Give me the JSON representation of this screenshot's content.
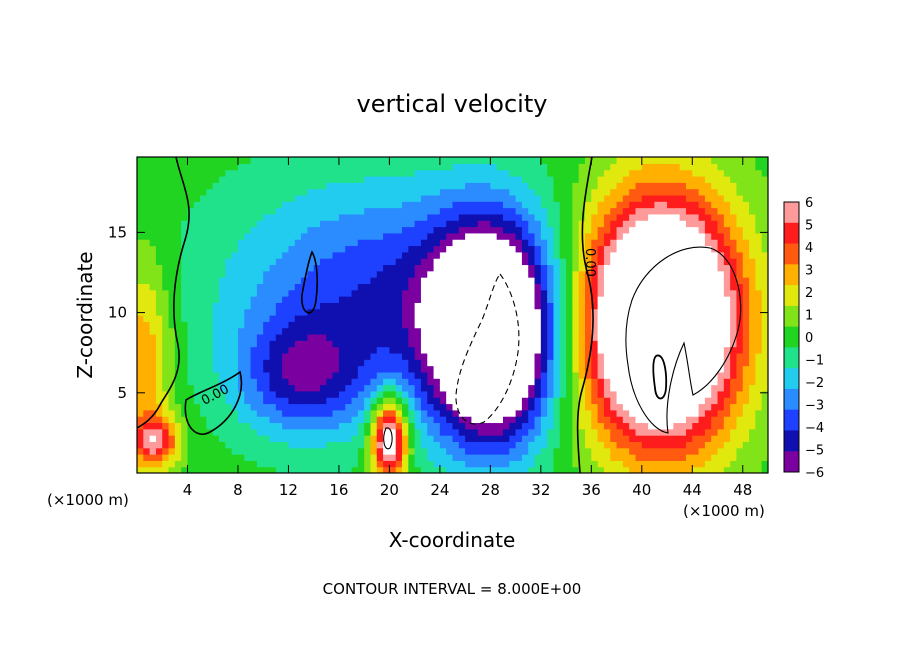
{
  "chart_data": {
    "type": "heatmap",
    "title": "vertical velocity",
    "xlabel": "X-coordinate",
    "ylabel": "Z-coordinate",
    "x_unit_left": "(×1000 m)",
    "x_unit_right": "(×1000 m)",
    "xlim": [
      0,
      50
    ],
    "ylim": [
      0,
      19.7
    ],
    "x_ticks": [
      4,
      8,
      12,
      16,
      20,
      24,
      28,
      32,
      36,
      40,
      44,
      48
    ],
    "y_ticks": [
      5,
      10,
      15
    ],
    "colorbar": {
      "ticks": [
        6,
        5,
        4,
        3,
        2,
        1,
        0,
        -1,
        -2,
        -3,
        -4,
        -5,
        -6
      ],
      "range": [
        -6,
        6
      ],
      "colors": [
        "#7a00a0",
        "#1010b0",
        "#1e40ff",
        "#2a8cff",
        "#22ccee",
        "#20e28a",
        "#22d422",
        "#80e418",
        "#e0e80e",
        "#ffb000",
        "#ff5a10",
        "#ff1c1c",
        "#ff9a9a"
      ]
    },
    "contour_interval_text": "CONTOUR INTERVAL = 8.000E+00",
    "contour_labels": [
      "0.00",
      "0.00"
    ],
    "features": [
      {
        "kind": "updraft",
        "x": 1.5,
        "z": 2.0,
        "sx": 1.3,
        "sz": 1.1,
        "w": 5.0
      },
      {
        "kind": "updraft",
        "x": 20.0,
        "z": 2.2,
        "sx": 1.0,
        "sz": 1.8,
        "w": 9.0
      },
      {
        "kind": "updraft",
        "x": 41.5,
        "z": 9.5,
        "sx": 4.2,
        "sz": 5.2,
        "w": 15.0
      },
      {
        "kind": "updraft",
        "x": 0.5,
        "z": 7.0,
        "sx": 1.6,
        "sz": 4.5,
        "w": 3.5
      },
      {
        "kind": "downdraft",
        "x": 28.0,
        "z": 8.5,
        "sx": 3.2,
        "sz": 4.5,
        "w": -12.0
      },
      {
        "kind": "downdraft",
        "x": 20.0,
        "z": 11.0,
        "sx": 9.0,
        "sz": 5.0,
        "w": -4.5
      },
      {
        "kind": "downdraft",
        "x": 13.0,
        "z": 6.0,
        "sx": 3.5,
        "sz": 2.5,
        "w": -4.0
      }
    ]
  }
}
